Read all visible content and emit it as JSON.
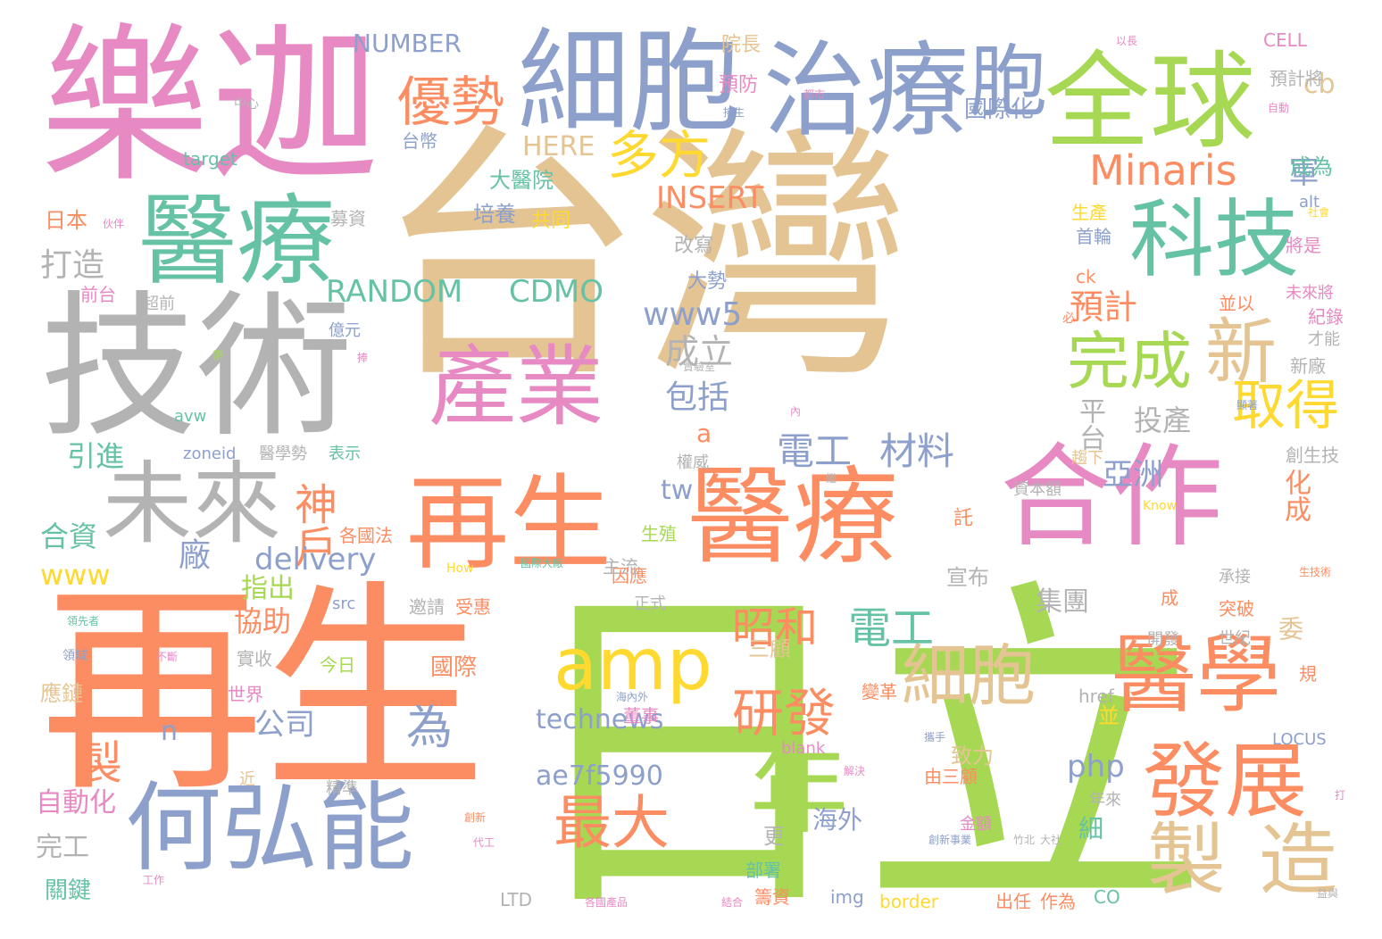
{
  "palette": {
    "orange": "#fc8d62",
    "blue": "#8da0cb",
    "pink": "#e78ac3",
    "green": "#a6d854",
    "yellow": "#ffd92f",
    "tan": "#e5c494",
    "gray": "#b3b3b3",
    "teal": "#66c2a5"
  },
  "words": [
    {
      "text": "台灣",
      "color": "#e5c494"
    },
    {
      "text": "日立",
      "color": "#a6d854"
    },
    {
      "text": "再生",
      "color": "#fc8d62"
    },
    {
      "text": "樂迦",
      "color": "#e78ac3"
    },
    {
      "text": "技術",
      "color": "#b3b3b3"
    },
    {
      "text": "細胞",
      "color": "#8da0cb"
    },
    {
      "text": "治療",
      "color": "#8da0cb"
    },
    {
      "text": "胞",
      "color": "#8da0cb"
    },
    {
      "text": "全球",
      "color": "#a6d854"
    },
    {
      "text": "科技",
      "color": "#66c2a5"
    },
    {
      "text": "醫療",
      "color": "#66c2a5"
    },
    {
      "text": "產業",
      "color": "#e78ac3"
    },
    {
      "text": "合作",
      "color": "#e78ac3"
    },
    {
      "text": "醫療",
      "color": "#fc8d62"
    },
    {
      "text": "再生",
      "color": "#fc8d62"
    },
    {
      "text": "何弘能",
      "color": "#8da0cb"
    },
    {
      "text": "未來",
      "color": "#b3b3b3"
    },
    {
      "text": "醫學",
      "color": "#fc8d62"
    },
    {
      "text": "發展",
      "color": "#fc8d62"
    },
    {
      "text": "年",
      "color": "#a6d854"
    },
    {
      "text": "製",
      "color": "#e5c494"
    },
    {
      "text": "造",
      "color": "#e5c494"
    },
    {
      "text": "新",
      "color": "#e5c494"
    },
    {
      "text": "完成",
      "color": "#a6d854"
    },
    {
      "text": "取得",
      "color": "#ffd92f"
    },
    {
      "text": "Minaris",
      "color": "#fc8d62"
    },
    {
      "text": "優勢",
      "color": "#fc8d62"
    },
    {
      "text": "多方",
      "color": "#ffd92f"
    },
    {
      "text": "amp",
      "color": "#ffd92f"
    },
    {
      "text": "細胞",
      "color": "#e5c494"
    },
    {
      "text": "研發",
      "color": "#fc8d62"
    },
    {
      "text": "最大",
      "color": "#fc8d62"
    },
    {
      "text": "神戶",
      "color": "#fc8d62"
    },
    {
      "text": "昭和",
      "color": "#fc8d62"
    },
    {
      "text": "電工",
      "color": "#66c2a5"
    },
    {
      "text": "電工",
      "color": "#8da0cb"
    },
    {
      "text": "材料",
      "color": "#8da0cb"
    },
    {
      "text": "RANDOM",
      "color": "#66c2a5"
    },
    {
      "text": "CDMO",
      "color": "#66c2a5"
    },
    {
      "text": "www5",
      "color": "#8da0cb"
    },
    {
      "text": "INSERT",
      "color": "#fc8d62"
    },
    {
      "text": "HERE",
      "color": "#e5c494"
    },
    {
      "text": "NUMBER",
      "color": "#8da0cb"
    },
    {
      "text": "technews",
      "color": "#8da0cb"
    },
    {
      "text": "ae7f5990",
      "color": "#8da0cb"
    },
    {
      "text": "delivery",
      "color": "#8da0cb"
    },
    {
      "text": "www",
      "color": "#ffd92f"
    },
    {
      "text": "php",
      "color": "#8da0cb"
    },
    {
      "text": "亞洲",
      "color": "#8da0cb"
    },
    {
      "text": "投產",
      "color": "#b3b3b3"
    },
    {
      "text": "平台",
      "color": "#b3b3b3"
    },
    {
      "text": "成立",
      "color": "#b3b3b3"
    },
    {
      "text": "包括",
      "color": "#8da0cb"
    },
    {
      "text": "預計",
      "color": "#fc8d62"
    },
    {
      "text": "軍",
      "color": "#8da0cb"
    },
    {
      "text": "cb",
      "color": "#e5c494"
    },
    {
      "text": "國際化",
      "color": "#8da0cb"
    },
    {
      "text": "成為",
      "color": "#66c2a5"
    },
    {
      "text": "打造",
      "color": "#b3b3b3"
    },
    {
      "text": "引進",
      "color": "#66c2a5"
    },
    {
      "text": "合資",
      "color": "#66c2a5"
    },
    {
      "text": "廠",
      "color": "#8da0cb"
    },
    {
      "text": "為",
      "color": "#8da0cb"
    },
    {
      "text": "公司",
      "color": "#8da0cb"
    },
    {
      "text": "協助",
      "color": "#fc8d62"
    },
    {
      "text": "指出",
      "color": "#a6d854"
    },
    {
      "text": "製",
      "color": "#fc8d62"
    },
    {
      "text": "n",
      "color": "#8da0cb"
    },
    {
      "text": "自動化",
      "color": "#e78ac3"
    },
    {
      "text": "完工",
      "color": "#b3b3b3"
    },
    {
      "text": "關鍵",
      "color": "#66c2a5"
    },
    {
      "text": "日本",
      "color": "#fc8d62"
    },
    {
      "text": "應鏈",
      "color": "#e5c494"
    },
    {
      "text": "培養",
      "color": "#8da0cb"
    },
    {
      "text": "集團",
      "color": "#b3b3b3"
    },
    {
      "text": "委",
      "color": "#e5c494"
    },
    {
      "text": "三顧",
      "color": "#e5c494"
    },
    {
      "text": "國際",
      "color": "#fc8d62"
    },
    {
      "text": "致力",
      "color": "#e5c494"
    },
    {
      "text": "並",
      "color": "#ffd92f"
    },
    {
      "text": "細",
      "color": "#66c2a5"
    },
    {
      "text": "海外",
      "color": "#8da0cb"
    },
    {
      "text": "更",
      "color": "#b3b3b3"
    },
    {
      "text": "化成",
      "color": "#fc8d62"
    },
    {
      "text": "tw",
      "color": "#8da0cb"
    },
    {
      "text": "a",
      "color": "#fc8d62"
    },
    {
      "text": "託",
      "color": "#fc8d62"
    },
    {
      "text": "宣布",
      "color": "#b3b3b3"
    },
    {
      "text": "院長",
      "color": "#e5c494"
    },
    {
      "text": "預防",
      "color": "#e78ac3"
    },
    {
      "text": "大醫院",
      "color": "#66c2a5"
    },
    {
      "text": "共同",
      "color": "#ffd92f"
    },
    {
      "text": "募資",
      "color": "#b3b3b3"
    },
    {
      "text": "改寫",
      "color": "#b3b3b3"
    },
    {
      "text": "大勢",
      "color": "#8da0cb"
    },
    {
      "text": "target",
      "color": "#66c2a5"
    },
    {
      "text": "台幣",
      "color": "#8da0cb"
    },
    {
      "text": "CELL",
      "color": "#e78ac3"
    },
    {
      "text": "預計將",
      "color": "#b3b3b3"
    },
    {
      "text": "alt",
      "color": "#8da0cb"
    },
    {
      "text": "生產",
      "color": "#ffd92f"
    },
    {
      "text": "首輪",
      "color": "#8da0cb"
    },
    {
      "text": "將是",
      "color": "#e78ac3"
    },
    {
      "text": "ck",
      "color": "#fc8d62"
    },
    {
      "text": "並以",
      "color": "#fc8d62"
    },
    {
      "text": "未來將",
      "color": "#e78ac3"
    },
    {
      "text": "紀錄",
      "color": "#e78ac3"
    },
    {
      "text": "才能",
      "color": "#b3b3b3"
    },
    {
      "text": "新廠",
      "color": "#b3b3b3"
    },
    {
      "text": "創生技",
      "color": "#b3b3b3"
    },
    {
      "text": "超前",
      "color": "#b3b3b3"
    },
    {
      "text": "前台",
      "color": "#e78ac3"
    },
    {
      "text": "億元",
      "color": "#8da0cb"
    },
    {
      "text": "avw",
      "color": "#66c2a5"
    },
    {
      "text": "zoneid",
      "color": "#8da0cb"
    },
    {
      "text": "醫學勢",
      "color": "#b3b3b3"
    },
    {
      "text": "表示",
      "color": "#66c2a5"
    },
    {
      "text": "權威",
      "color": "#b3b3b3"
    },
    {
      "text": "資本額",
      "color": "#b3b3b3"
    },
    {
      "text": "趨下",
      "color": "#e5c494"
    },
    {
      "text": "各國法",
      "color": "#fc8d62"
    },
    {
      "text": "生殖",
      "color": "#a6d854"
    },
    {
      "text": "因應",
      "color": "#fc8d62"
    },
    {
      "text": "主流",
      "color": "#b3b3b3"
    },
    {
      "text": "src",
      "color": "#8da0cb"
    },
    {
      "text": "邀請",
      "color": "#b3b3b3"
    },
    {
      "text": "受惠",
      "color": "#fc8d62"
    },
    {
      "text": "正式",
      "color": "#b3b3b3"
    },
    {
      "text": "突破",
      "color": "#fc8d62"
    },
    {
      "text": "成",
      "color": "#fc8d62"
    },
    {
      "text": "開發",
      "color": "#b3b3b3"
    },
    {
      "text": "承接",
      "color": "#b3b3b3"
    },
    {
      "text": "世紀",
      "color": "#b3b3b3"
    },
    {
      "text": "規",
      "color": "#fc8d62"
    },
    {
      "text": "實收",
      "color": "#b3b3b3"
    },
    {
      "text": "今日",
      "color": "#a6d854"
    },
    {
      "text": "世界",
      "color": "#e78ac3"
    },
    {
      "text": "董事",
      "color": "#e78ac3"
    },
    {
      "text": "變革",
      "color": "#fc8d62"
    },
    {
      "text": "href",
      "color": "#b3b3b3"
    },
    {
      "text": "blank",
      "color": "#e78ac3"
    },
    {
      "text": "LOCUS",
      "color": "#8da0cb"
    },
    {
      "text": "精準",
      "color": "#b3b3b3"
    },
    {
      "text": "近",
      "color": "#e5c494"
    },
    {
      "text": "由三顧",
      "color": "#fc8d62"
    },
    {
      "text": "年來",
      "color": "#b3b3b3"
    },
    {
      "text": "金額",
      "color": "#e78ac3"
    },
    {
      "text": "部署",
      "color": "#66c2a5"
    },
    {
      "text": "籌資",
      "color": "#fc8d62"
    },
    {
      "text": "出任",
      "color": "#fc8d62"
    },
    {
      "text": "作為",
      "color": "#fc8d62"
    },
    {
      "text": "CO",
      "color": "#66c2a5"
    },
    {
      "text": "img",
      "color": "#8da0cb"
    },
    {
      "text": "border",
      "color": "#ffd92f"
    },
    {
      "text": "LTD",
      "color": "#b3b3b3"
    },
    {
      "text": "以長",
      "color": "#e78ac3"
    },
    {
      "text": "自動",
      "color": "#e78ac3"
    },
    {
      "text": "社會",
      "color": "#ffd92f"
    },
    {
      "text": "中心",
      "color": "#b3b3b3"
    },
    {
      "text": "都市",
      "color": "#e78ac3"
    },
    {
      "text": "搖生",
      "color": "#8da0cb"
    },
    {
      "text": "Know",
      "color": "#ffd92f"
    },
    {
      "text": "How",
      "color": "#ffd92f"
    },
    {
      "text": "國際大廠",
      "color": "#66c2a5"
    },
    {
      "text": "海內外",
      "color": "#8da0cb"
    },
    {
      "text": "生技術",
      "color": "#fc8d62"
    },
    {
      "text": "領先者",
      "color": "#66c2a5"
    },
    {
      "text": "領域",
      "color": "#8da0cb"
    },
    {
      "text": "不斷",
      "color": "#e78ac3"
    },
    {
      "text": "伙伴",
      "color": "#e78ac3"
    },
    {
      "text": "攜手",
      "color": "#8da0cb"
    },
    {
      "text": "解決",
      "color": "#e78ac3"
    },
    {
      "text": "竹北",
      "color": "#b3b3b3"
    },
    {
      "text": "大社",
      "color": "#b3b3b3"
    },
    {
      "text": "創新事業",
      "color": "#8da0cb"
    },
    {
      "text": "創新",
      "color": "#fc8d62"
    },
    {
      "text": "代工",
      "color": "#e78ac3"
    },
    {
      "text": "工作",
      "color": "#e78ac3"
    },
    {
      "text": "結合",
      "color": "#e78ac3"
    },
    {
      "text": "各國產品",
      "color": "#e78ac3"
    },
    {
      "text": "益與",
      "color": "#b3b3b3"
    },
    {
      "text": "打",
      "color": "#e78ac3"
    },
    {
      "text": "必",
      "color": "#fc8d62"
    },
    {
      "text": "內",
      "color": "#e78ac3"
    },
    {
      "text": "繼",
      "color": "#b3b3b3"
    },
    {
      "text": "顯著",
      "color": "#8da0cb"
    },
    {
      "text": "實驗室",
      "color": "#b3b3b3"
    },
    {
      "text": "帶",
      "color": "#a6d854"
    },
    {
      "text": "捧",
      "color": "#e78ac3"
    }
  ]
}
